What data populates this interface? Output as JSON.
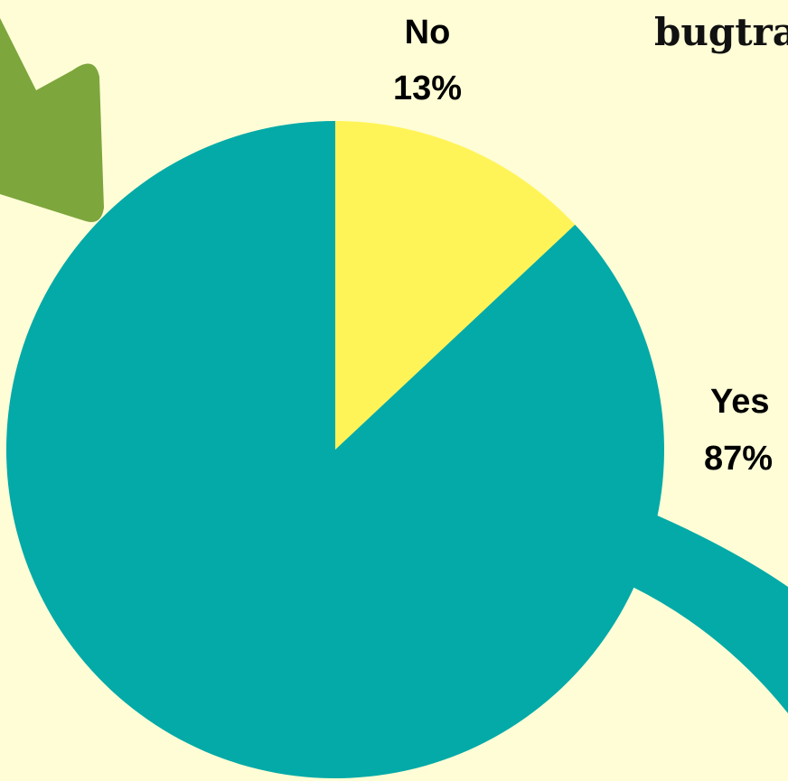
{
  "chart_data": {
    "type": "pie",
    "title": "bugtra",
    "slices": [
      {
        "label": "No",
        "value": 13,
        "value_label": "13%",
        "color": "#fff457"
      },
      {
        "label": "Yes",
        "value": 87,
        "value_label": "87%",
        "color": "#03aaa8"
      }
    ],
    "start_angle_deg": 0,
    "direction": "clockwise",
    "legend": "none"
  },
  "decor": {
    "background_color": "#fffdd6",
    "arrow_color": "#7da63d",
    "tail_color": "#03aaa8"
  }
}
